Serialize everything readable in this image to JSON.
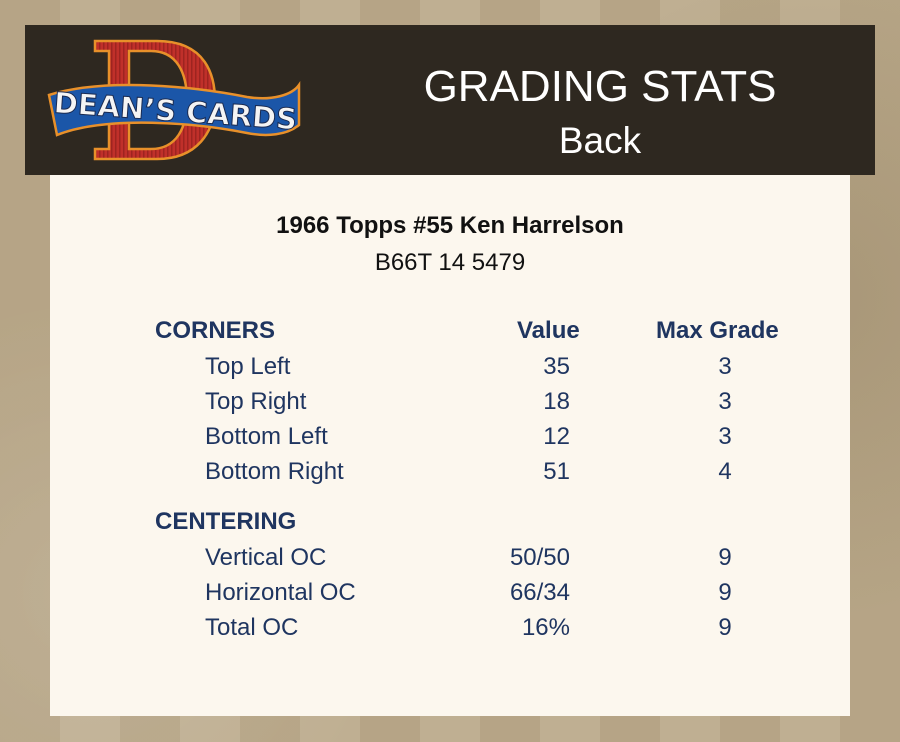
{
  "header": {
    "logo_text": "DEAN'S CARDS",
    "title": "GRADING STATS",
    "subtitle": "Back"
  },
  "card": {
    "title": "1966 Topps #55 Ken Harrelson",
    "code": "B66T 14 5479"
  },
  "columns": {
    "value": "Value",
    "max_grade": "Max Grade"
  },
  "corners": {
    "heading": "CORNERS",
    "rows": [
      {
        "label": "Top Left",
        "value": "35",
        "max_grade": "3"
      },
      {
        "label": "Top Right",
        "value": "18",
        "max_grade": "3"
      },
      {
        "label": "Bottom Left",
        "value": "12",
        "max_grade": "3"
      },
      {
        "label": "Bottom Right",
        "value": "51",
        "max_grade": "4"
      }
    ]
  },
  "centering": {
    "heading": "CENTERING",
    "rows": [
      {
        "label": "Vertical OC",
        "value": "50/50",
        "max_grade": "9"
      },
      {
        "label": "Horizontal OC",
        "value": "66/34",
        "max_grade": "9"
      },
      {
        "label": "Total OC",
        "value": "16%",
        "max_grade": "9"
      }
    ]
  },
  "colors": {
    "header_bg": "#2e2820",
    "panel_bg": "#fcf7ee",
    "text": "#1f3560"
  }
}
